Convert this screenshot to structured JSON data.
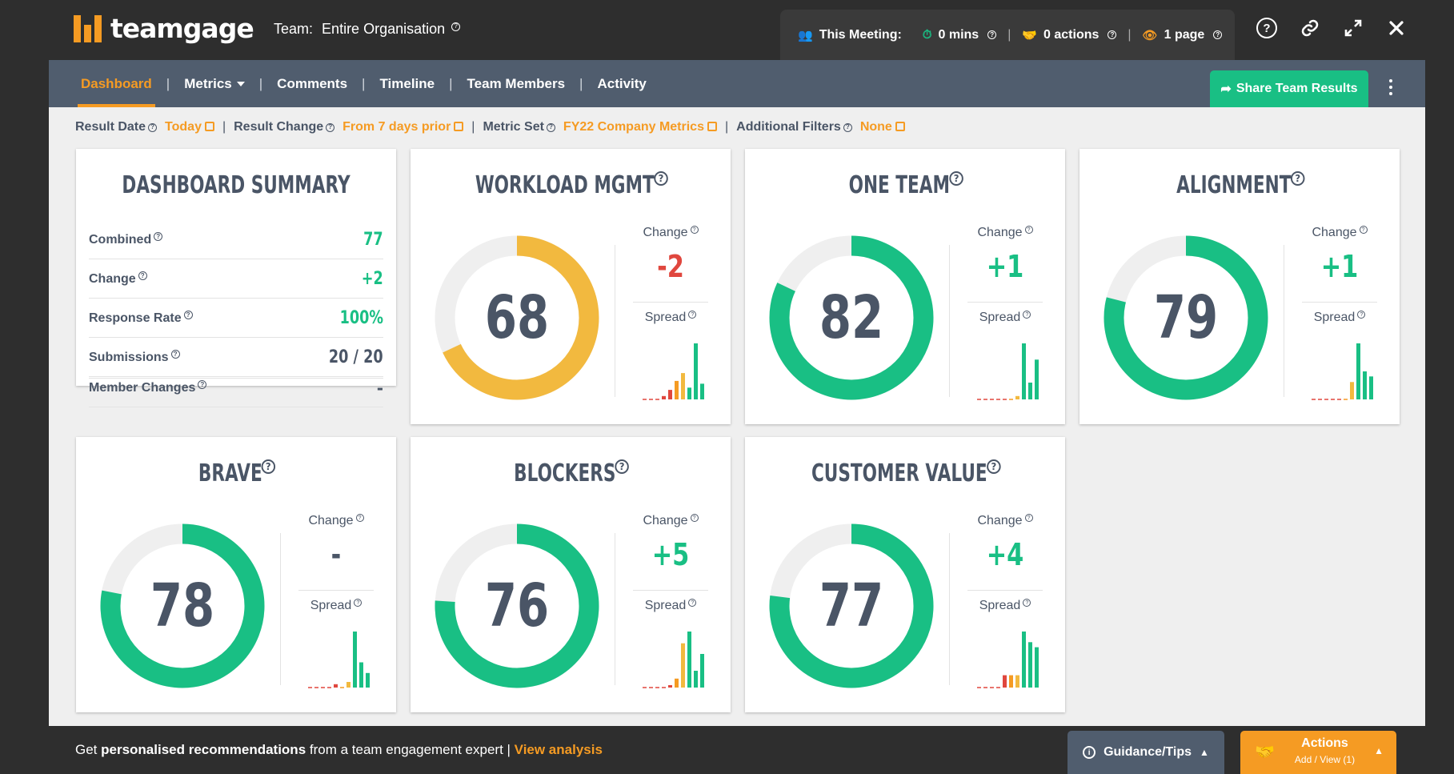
{
  "app": {
    "logo_text": "teamgage",
    "team_label": "Team:",
    "team_value": "Entire Organisation"
  },
  "meeting": {
    "label": "This Meeting:",
    "mins": "0 mins",
    "actions": "0 actions",
    "pages": "1 page"
  },
  "nav": {
    "tabs": [
      {
        "label": "Dashboard",
        "active": true
      },
      {
        "label": "Metrics",
        "active": false
      },
      {
        "label": "Comments",
        "active": false
      },
      {
        "label": "Timeline",
        "active": false
      },
      {
        "label": "Team Members",
        "active": false
      },
      {
        "label": "Activity",
        "active": false
      }
    ],
    "share_label": "Share Team Results"
  },
  "filters": {
    "result_date_label": "Result Date",
    "result_date_value": "Today",
    "result_change_label": "Result Change",
    "result_change_value": "From 7 days prior",
    "metric_set_label": "Metric Set",
    "metric_set_value": "FY22 Company Metrics",
    "additional_label": "Additional Filters",
    "additional_value": "None"
  },
  "summary": {
    "title": "DASHBOARD SUMMARY",
    "rows": [
      {
        "label": "Combined",
        "value": "77",
        "style": "green"
      },
      {
        "label": "Change",
        "value": "+2",
        "style": "green"
      },
      {
        "label": "Response Rate",
        "value": "100%",
        "style": "green"
      },
      {
        "label": "Submissions",
        "value": "20 / 20",
        "style": "dark"
      },
      {
        "label": "Member Changes",
        "value": "-",
        "style": "dark"
      }
    ]
  },
  "metric_labels": {
    "change": "Change",
    "spread": "Spread"
  },
  "metrics": [
    {
      "title": "WORKLOAD MGMT",
      "score": 68,
      "change": "-2",
      "change_style": "neg",
      "ring_color": "#f2b93f",
      "spread": [
        {
          "v": 0.0,
          "c": "#e0473e"
        },
        {
          "v": 0.0,
          "c": "#e0473e"
        },
        {
          "v": 0.0,
          "c": "#e0473e"
        },
        {
          "v": 0.06,
          "c": "#e0473e"
        },
        {
          "v": 0.17,
          "c": "#e0473e"
        },
        {
          "v": 0.33,
          "c": "#f59b23"
        },
        {
          "v": 0.47,
          "c": "#f2b93f"
        },
        {
          "v": 0.21,
          "c": "#19bf84"
        },
        {
          "v": 1.0,
          "c": "#19bf84"
        },
        {
          "v": 0.28,
          "c": "#19bf84"
        }
      ]
    },
    {
      "title": "ONE TEAM",
      "score": 82,
      "change": "+1",
      "change_style": "pos",
      "ring_color": "#19bf84",
      "spread": [
        {
          "v": 0.0,
          "c": "#e0473e"
        },
        {
          "v": 0.0,
          "c": "#e0473e"
        },
        {
          "v": 0.0,
          "c": "#e0473e"
        },
        {
          "v": 0.0,
          "c": "#e0473e"
        },
        {
          "v": 0.0,
          "c": "#e0473e"
        },
        {
          "v": 0.0,
          "c": "#f59b23"
        },
        {
          "v": 0.06,
          "c": "#f2b93f"
        },
        {
          "v": 1.0,
          "c": "#19bf84"
        },
        {
          "v": 0.3,
          "c": "#19bf84"
        },
        {
          "v": 0.71,
          "c": "#19bf84"
        }
      ]
    },
    {
      "title": "ALIGNMENT",
      "score": 79,
      "change": "+1",
      "change_style": "pos",
      "ring_color": "#19bf84",
      "spread": [
        {
          "v": 0.0,
          "c": "#e0473e"
        },
        {
          "v": 0.0,
          "c": "#e0473e"
        },
        {
          "v": 0.0,
          "c": "#e0473e"
        },
        {
          "v": 0.0,
          "c": "#e0473e"
        },
        {
          "v": 0.0,
          "c": "#e0473e"
        },
        {
          "v": 0.0,
          "c": "#f59b23"
        },
        {
          "v": 0.31,
          "c": "#f2b93f"
        },
        {
          "v": 1.0,
          "c": "#19bf84"
        },
        {
          "v": 0.5,
          "c": "#19bf84"
        },
        {
          "v": 0.41,
          "c": "#19bf84"
        }
      ]
    },
    {
      "title": "BRAVE",
      "score": 78,
      "change": "-",
      "change_style": "neu",
      "ring_color": "#19bf84",
      "spread": [
        {
          "v": 0.0,
          "c": "#e0473e"
        },
        {
          "v": 0.0,
          "c": "#e0473e"
        },
        {
          "v": 0.0,
          "c": "#e0473e"
        },
        {
          "v": 0.0,
          "c": "#e0473e"
        },
        {
          "v": 0.06,
          "c": "#e0473e"
        },
        {
          "v": 0.0,
          "c": "#f59b23"
        },
        {
          "v": 0.1,
          "c": "#f2b93f"
        },
        {
          "v": 1.0,
          "c": "#19bf84"
        },
        {
          "v": 0.45,
          "c": "#19bf84"
        },
        {
          "v": 0.26,
          "c": "#19bf84"
        }
      ]
    },
    {
      "title": "BLOCKERS",
      "score": 76,
      "change": "+5",
      "change_style": "pos",
      "ring_color": "#19bf84",
      "spread": [
        {
          "v": 0.0,
          "c": "#e0473e"
        },
        {
          "v": 0.0,
          "c": "#e0473e"
        },
        {
          "v": 0.0,
          "c": "#e0473e"
        },
        {
          "v": 0.0,
          "c": "#e0473e"
        },
        {
          "v": 0.04,
          "c": "#e0473e"
        },
        {
          "v": 0.16,
          "c": "#f59b23"
        },
        {
          "v": 0.79,
          "c": "#f2b93f"
        },
        {
          "v": 1.0,
          "c": "#19bf84"
        },
        {
          "v": 0.3,
          "c": "#19bf84"
        },
        {
          "v": 0.6,
          "c": "#19bf84"
        }
      ]
    },
    {
      "title": "CUSTOMER VALUE",
      "score": 77,
      "change": "+4",
      "change_style": "pos",
      "ring_color": "#19bf84",
      "spread": [
        {
          "v": 0.0,
          "c": "#e0473e"
        },
        {
          "v": 0.0,
          "c": "#e0473e"
        },
        {
          "v": 0.0,
          "c": "#e0473e"
        },
        {
          "v": 0.0,
          "c": "#e0473e"
        },
        {
          "v": 0.22,
          "c": "#e0473e"
        },
        {
          "v": 0.22,
          "c": "#f59b23"
        },
        {
          "v": 0.22,
          "c": "#f2b93f"
        },
        {
          "v": 1.0,
          "c": "#19bf84"
        },
        {
          "v": 0.81,
          "c": "#19bf84"
        },
        {
          "v": 0.72,
          "c": "#19bf84"
        }
      ]
    }
  ],
  "footer": {
    "pre": "Get ",
    "bold": "personalised recommendations",
    "mid": " from a team engagement expert | ",
    "link": "View analysis",
    "guidance": "Guidance/Tips",
    "actions_title": "Actions",
    "actions_sub": "Add / View (1)"
  },
  "colors": {
    "orange": "#f59b23",
    "green": "#19bf84",
    "red": "#e0473e",
    "slate": "#505d6e",
    "track": "#efefef"
  }
}
